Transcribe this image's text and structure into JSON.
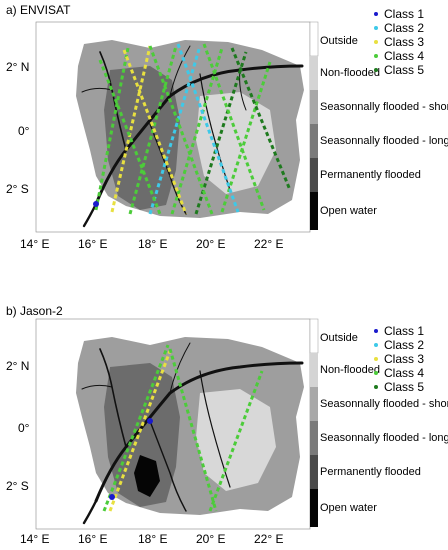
{
  "panels": [
    {
      "title": "a) ENVISAT",
      "lon_ticks": [
        "14° E",
        "16° E",
        "18° E",
        "20° E",
        "22° E"
      ],
      "lat_ticks": [
        "2° N",
        "0°",
        "2° S"
      ],
      "colorbar": [
        "Outside",
        "Non-flooded",
        "Seasonnally flooded - short",
        "Seasonnally flooded - long",
        "Permanently flooded",
        "Open water"
      ],
      "legend": [
        "Class 1",
        "Class 2",
        "Class 3",
        "Class 4",
        "Class 5"
      ]
    },
    {
      "title": "b) Jason-2",
      "lon_ticks": [
        "14° E",
        "16° E",
        "18° E",
        "20° E",
        "22° E"
      ],
      "lat_ticks": [
        "2° N",
        "0°",
        "2° S"
      ],
      "colorbar": [
        "Outside",
        "Non-flooded",
        "Seasonnally flooded - short",
        "Seasonnally flooded - long",
        "Permanently flooded",
        "Open water"
      ],
      "legend": [
        "Class 1",
        "Class 2",
        "Class 3",
        "Class 4",
        "Class 5"
      ]
    }
  ],
  "colors": {
    "class_1": "#1a1acc",
    "class_2": "#3ec9e8",
    "class_3": "#e8e040",
    "class_4": "#4ccc3a",
    "class_5": "#1e7a1e",
    "outside": "#ffffff",
    "non_flooded": "#d4d4d4",
    "season_short": "#a8a8a8",
    "season_long": "#7a7a7a",
    "permanent": "#4a4a4a",
    "open_water": "#050505"
  }
}
